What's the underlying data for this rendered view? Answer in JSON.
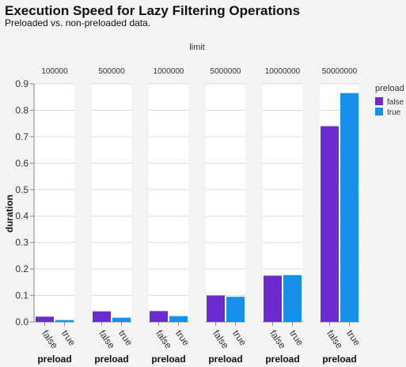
{
  "chart_data": {
    "type": "bar",
    "title": "Execution Speed for Lazy Filtering Operations",
    "subtitle": "Preloaded vs. non-preloaded data.",
    "facet_label": "limit",
    "facets": [
      "100000",
      "500000",
      "1000000",
      "5000000",
      "10000000",
      "50000000"
    ],
    "categories": [
      "false",
      "true"
    ],
    "xlabel": "preload",
    "ylabel": "duration",
    "ylim": [
      0,
      0.9
    ],
    "yticks": [
      "0.0",
      "0.1",
      "0.2",
      "0.3",
      "0.4",
      "0.5",
      "0.6",
      "0.7",
      "0.8",
      "0.9"
    ],
    "grid": true,
    "legend_position": "right",
    "legend_title": "preload",
    "legend": [
      {
        "label": "false",
        "color": "#6a2ccf"
      },
      {
        "label": "true",
        "color": "#1690e8"
      }
    ],
    "values": [
      [
        0.02,
        0.007
      ],
      [
        0.04,
        0.016
      ],
      [
        0.041,
        0.022
      ],
      [
        0.1,
        0.095
      ],
      [
        0.175,
        0.177
      ],
      [
        0.74,
        0.865
      ]
    ]
  }
}
